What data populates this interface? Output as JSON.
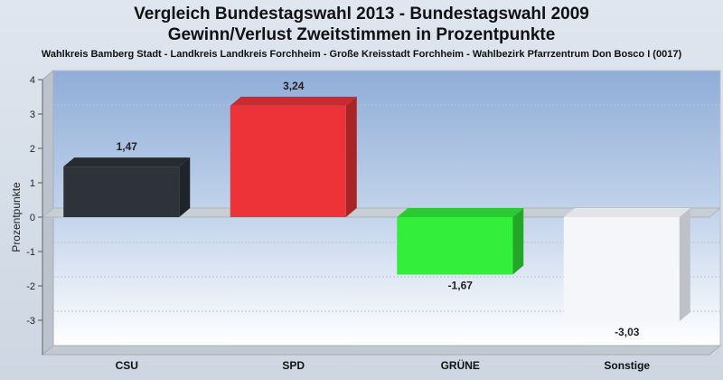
{
  "title_line1": "Vergleich Bundestagswahl 2013 - Bundestagswahl 2009",
  "title_line2": "Gewinn/Verlust Zweitstimmen in Prozentpunkte",
  "subtitle": "Wahlkreis Bamberg Stadt - Landkreis Landkreis Forchheim - Große Kreisstadt Forchheim - Wahlbezirk Pfarrzentrum Don Bosco I (0017)",
  "chart_data": {
    "type": "bar",
    "title": "Vergleich Bundestagswahl 2013 - Bundestagswahl 2009 / Gewinn/Verlust Zweitstimmen in Prozentpunkte",
    "xlabel": "",
    "ylabel": "Prozentpunkte",
    "ylim": [
      -4,
      4
    ],
    "yticks": [
      "4",
      "3",
      "2",
      "1",
      "0",
      "-1",
      "-2",
      "-3"
    ],
    "yticks_values": [
      4,
      3,
      2,
      1,
      0,
      -1,
      -2,
      -3
    ],
    "categories": [
      "CSU",
      "SPD",
      "GRÜNE",
      "Sonstige"
    ],
    "values": [
      1.47,
      3.24,
      -1.67,
      -3.03
    ],
    "value_labels": [
      "1,47",
      "3,24",
      "-1,67",
      "-3,03"
    ],
    "colors": [
      "#2e323a",
      "#ee3338",
      "#33ee3b",
      "#f5f6fa"
    ],
    "grid": true,
    "legend": "none"
  }
}
